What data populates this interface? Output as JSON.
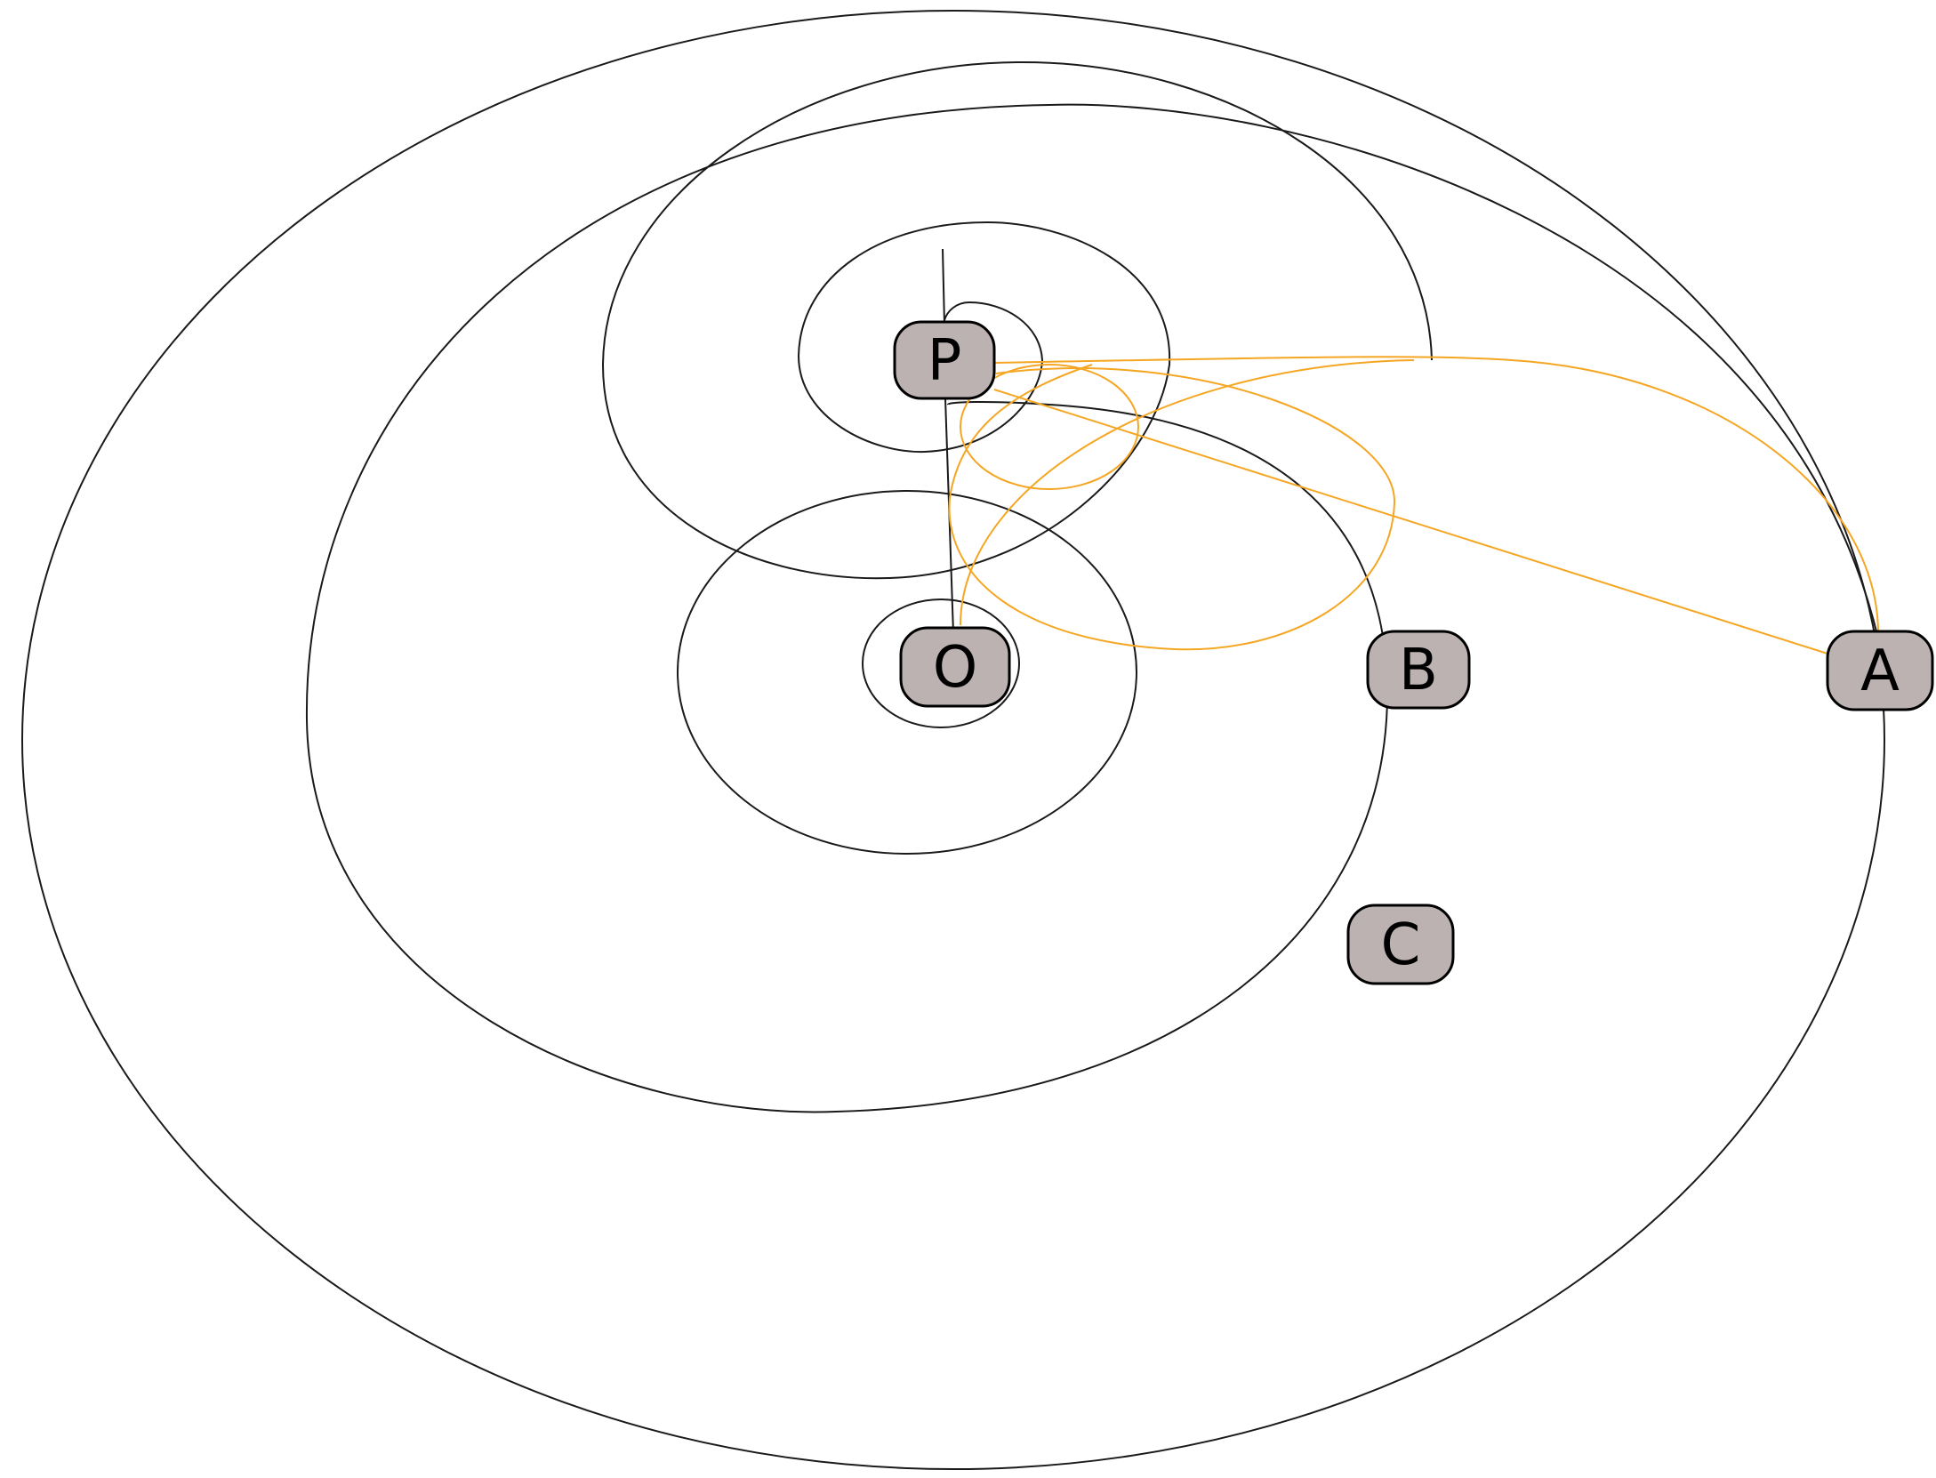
{
  "diagram": {
    "nodes": [
      {
        "id": "P",
        "label": "P"
      },
      {
        "id": "O",
        "label": "O"
      },
      {
        "id": "B",
        "label": "B"
      },
      {
        "id": "A",
        "label": "A"
      },
      {
        "id": "C",
        "label": "C"
      }
    ]
  },
  "colors": {
    "background": "#ffffff",
    "node_fill": "#bdb2b2",
    "node_stroke": "#000000",
    "black_edge": "#1a1a1a",
    "orange_edge": "#f5a623"
  }
}
